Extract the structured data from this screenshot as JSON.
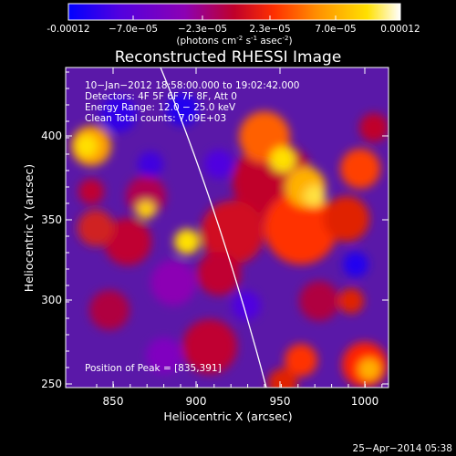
{
  "colorbar": {
    "tick_labels": [
      "-0.00012",
      "−7.0e−05",
      "−2.3e−05",
      "2.3e−05",
      "7.0e−05",
      "0.00012"
    ],
    "unit_label": "(photons cm",
    "unit_exp1": "-2",
    "unit_mid": " s",
    "unit_exp2": "-1",
    "unit_end": " asec",
    "unit_exp3": "-2",
    "unit_close": ")",
    "colormap": [
      "#0000ff",
      "#5000e0",
      "#8c00b4",
      "#c0002a",
      "#ff3000",
      "#ff9000",
      "#ffe000",
      "#ffffff"
    ]
  },
  "plot": {
    "title": "Reconstructed RHESSI Image",
    "xlabel": "Heliocentric X (arcsec)",
    "ylabel": "Heliocentric Y (arcsec)",
    "x_ticks": [
      "850",
      "900",
      "950",
      "1000"
    ],
    "y_ticks": [
      "250",
      "300",
      "350",
      "400"
    ],
    "info_lines": [
      "10−Jan−2012 18:58:00.000 to 19:02:42.000",
      "Detectors: 4F 5F 6F 7F 8F, Att 0",
      "Energy Range: 12.0 − 25.0 keV",
      "Clean     Total counts: 7.09E+03"
    ],
    "peak_text": "Position of Peak = [835,391]"
  },
  "footer": {
    "date": "25−Apr−2014 05:38"
  }
}
